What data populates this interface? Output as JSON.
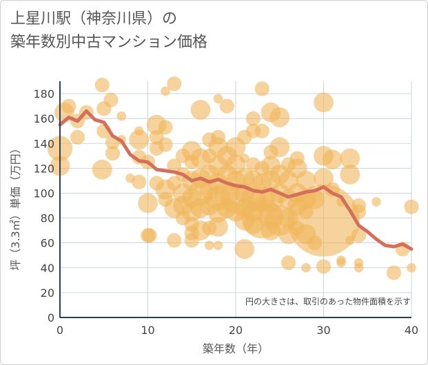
{
  "title_line1": "上星川駅（神奈川県）の",
  "title_line2": "築年数別中古マンション価格",
  "chart_data": {
    "type": "scatter",
    "title": "上星川駅（神奈川県）の 築年数別中古マンション価格",
    "xlabel": "築年数（年）",
    "ylabel": "坪（3.3㎡）単価（万円）",
    "xlim": [
      0,
      40
    ],
    "ylim": [
      0,
      190
    ],
    "xticks": [
      0,
      10,
      20,
      30,
      40
    ],
    "yticks": [
      0,
      20,
      40,
      60,
      80,
      100,
      120,
      140,
      160,
      180
    ],
    "grid": true,
    "note": "円の大きさは、取引のあった物件面積を示す",
    "bubble_color": "#f0b55a",
    "line_color": "#d4705a",
    "trend_line": {
      "x": [
        0,
        1,
        2,
        3,
        4,
        5,
        6,
        7,
        8,
        9,
        10,
        11,
        12,
        13,
        14,
        15,
        16,
        17,
        18,
        19,
        20,
        21,
        22,
        23,
        24,
        25,
        26,
        27,
        28,
        29,
        30,
        31,
        32,
        33,
        34,
        35,
        36,
        37,
        38,
        39,
        40
      ],
      "y": [
        155,
        161,
        158,
        166,
        159,
        157,
        146,
        142,
        131,
        126,
        125,
        119,
        118,
        117,
        115,
        110,
        112,
        109,
        111,
        108,
        106,
        105,
        102,
        101,
        103,
        100,
        97,
        99,
        101,
        102,
        105,
        100,
        97,
        86,
        74,
        69,
        63,
        58,
        57,
        59,
        55
      ]
    },
    "bubbles": [
      {
        "x": 0,
        "y": 136,
        "s": 4
      },
      {
        "x": 0,
        "y": 122,
        "s": 3
      },
      {
        "x": 0.5,
        "y": 165,
        "s": 3
      },
      {
        "x": 1,
        "y": 170,
        "s": 2
      },
      {
        "x": 2,
        "y": 158,
        "s": 2
      },
      {
        "x": 2,
        "y": 145,
        "s": 2
      },
      {
        "x": 3,
        "y": 165,
        "s": 2
      },
      {
        "x": 4.8,
        "y": 187,
        "s": 2
      },
      {
        "x": 5,
        "y": 168,
        "s": 2
      },
      {
        "x": 5,
        "y": 150,
        "s": 2
      },
      {
        "x": 4.8,
        "y": 119,
        "s": 3
      },
      {
        "x": 5.8,
        "y": 175,
        "s": 2
      },
      {
        "x": 6,
        "y": 141,
        "s": 2
      },
      {
        "x": 6,
        "y": 132,
        "s": 2
      },
      {
        "x": 7,
        "y": 162,
        "s": 1
      },
      {
        "x": 7,
        "y": 143,
        "s": 1
      },
      {
        "x": 8,
        "y": 112,
        "s": 1
      },
      {
        "x": 9,
        "y": 150,
        "s": 1
      },
      {
        "x": 9,
        "y": 143,
        "s": 3
      },
      {
        "x": 9,
        "y": 129,
        "s": 2
      },
      {
        "x": 9,
        "y": 109,
        "s": 2
      },
      {
        "x": 10,
        "y": 125,
        "s": 2
      },
      {
        "x": 10,
        "y": 92,
        "s": 3
      },
      {
        "x": 10,
        "y": 66,
        "s": 2
      },
      {
        "x": 10.2,
        "y": 66,
        "s": 2
      },
      {
        "x": 11,
        "y": 155,
        "s": 3
      },
      {
        "x": 11,
        "y": 145,
        "s": 2
      },
      {
        "x": 11,
        "y": 136,
        "s": 2
      },
      {
        "x": 11,
        "y": 108,
        "s": 2
      },
      {
        "x": 12,
        "y": 182,
        "s": 1
      },
      {
        "x": 12,
        "y": 153,
        "s": 2
      },
      {
        "x": 12,
        "y": 139,
        "s": 2
      },
      {
        "x": 12,
        "y": 103,
        "s": 3
      },
      {
        "x": 12,
        "y": 95,
        "s": 2
      },
      {
        "x": 13,
        "y": 188,
        "s": 2
      },
      {
        "x": 13,
        "y": 122,
        "s": 2
      },
      {
        "x": 13,
        "y": 108,
        "s": 2
      },
      {
        "x": 13,
        "y": 88,
        "s": 3
      },
      {
        "x": 13,
        "y": 62,
        "s": 2
      },
      {
        "x": 14,
        "y": 130,
        "s": 2
      },
      {
        "x": 14,
        "y": 115,
        "s": 2
      },
      {
        "x": 14,
        "y": 100,
        "s": 3
      },
      {
        "x": 14,
        "y": 90,
        "s": 3
      },
      {
        "x": 14,
        "y": 80,
        "s": 2
      },
      {
        "x": 15,
        "y": 134,
        "s": 3
      },
      {
        "x": 15,
        "y": 125,
        "s": 2
      },
      {
        "x": 15,
        "y": 110,
        "s": 3
      },
      {
        "x": 15,
        "y": 96,
        "s": 3
      },
      {
        "x": 15,
        "y": 85,
        "s": 3
      },
      {
        "x": 15,
        "y": 75,
        "s": 2
      },
      {
        "x": 15,
        "y": 68,
        "s": 2
      },
      {
        "x": 15,
        "y": 62,
        "s": 2
      },
      {
        "x": 16,
        "y": 167,
        "s": 3
      },
      {
        "x": 16,
        "y": 128,
        "s": 3
      },
      {
        "x": 16,
        "y": 112,
        "s": 3
      },
      {
        "x": 16,
        "y": 100,
        "s": 4
      },
      {
        "x": 16,
        "y": 88,
        "s": 3
      },
      {
        "x": 16,
        "y": 70,
        "s": 3
      },
      {
        "x": 17,
        "y": 143,
        "s": 2
      },
      {
        "x": 17,
        "y": 130,
        "s": 2
      },
      {
        "x": 17,
        "y": 115,
        "s": 3
      },
      {
        "x": 17,
        "y": 103,
        "s": 3
      },
      {
        "x": 17,
        "y": 90,
        "s": 3
      },
      {
        "x": 17,
        "y": 72,
        "s": 2
      },
      {
        "x": 17,
        "y": 58,
        "s": 1
      },
      {
        "x": 18,
        "y": 176,
        "s": 1
      },
      {
        "x": 18,
        "y": 145,
        "s": 2
      },
      {
        "x": 18,
        "y": 137,
        "s": 3
      },
      {
        "x": 18,
        "y": 122,
        "s": 3
      },
      {
        "x": 18,
        "y": 108,
        "s": 3
      },
      {
        "x": 18,
        "y": 96,
        "s": 4
      },
      {
        "x": 18,
        "y": 84,
        "s": 3
      },
      {
        "x": 18,
        "y": 73,
        "s": 3
      },
      {
        "x": 18,
        "y": 58,
        "s": 1
      },
      {
        "x": 19,
        "y": 170,
        "s": 2
      },
      {
        "x": 19,
        "y": 130,
        "s": 3
      },
      {
        "x": 19,
        "y": 115,
        "s": 3
      },
      {
        "x": 19,
        "y": 100,
        "s": 4
      },
      {
        "x": 19,
        "y": 88,
        "s": 3
      },
      {
        "x": 20,
        "y": 137,
        "s": 3
      },
      {
        "x": 20,
        "y": 123,
        "s": 3
      },
      {
        "x": 20,
        "y": 110,
        "s": 3
      },
      {
        "x": 20,
        "y": 96,
        "s": 5
      },
      {
        "x": 20,
        "y": 85,
        "s": 3
      },
      {
        "x": 21,
        "y": 145,
        "s": 2
      },
      {
        "x": 21,
        "y": 128,
        "s": 1
      },
      {
        "x": 21,
        "y": 112,
        "s": 3
      },
      {
        "x": 21,
        "y": 100,
        "s": 3
      },
      {
        "x": 21,
        "y": 88,
        "s": 3
      },
      {
        "x": 21,
        "y": 78,
        "s": 3
      },
      {
        "x": 21,
        "y": 55,
        "s": 3
      },
      {
        "x": 22,
        "y": 160,
        "s": 2
      },
      {
        "x": 22,
        "y": 150,
        "s": 2
      },
      {
        "x": 22,
        "y": 123,
        "s": 2
      },
      {
        "x": 22,
        "y": 110,
        "s": 3
      },
      {
        "x": 22,
        "y": 95,
        "s": 4
      },
      {
        "x": 22,
        "y": 85,
        "s": 3
      },
      {
        "x": 22,
        "y": 75,
        "s": 3
      },
      {
        "x": 23,
        "y": 184,
        "s": 2
      },
      {
        "x": 23,
        "y": 150,
        "s": 2
      },
      {
        "x": 23,
        "y": 120,
        "s": 2
      },
      {
        "x": 23,
        "y": 108,
        "s": 3
      },
      {
        "x": 23,
        "y": 95,
        "s": 4
      },
      {
        "x": 23,
        "y": 80,
        "s": 7
      },
      {
        "x": 24,
        "y": 165,
        "s": 3
      },
      {
        "x": 24,
        "y": 133,
        "s": 2
      },
      {
        "x": 24,
        "y": 122,
        "s": 3
      },
      {
        "x": 24,
        "y": 110,
        "s": 3
      },
      {
        "x": 24,
        "y": 95,
        "s": 4
      },
      {
        "x": 24,
        "y": 82,
        "s": 4
      },
      {
        "x": 24,
        "y": 70,
        "s": 3
      },
      {
        "x": 25,
        "y": 161,
        "s": 3
      },
      {
        "x": 25,
        "y": 137,
        "s": 3
      },
      {
        "x": 25,
        "y": 115,
        "s": 3
      },
      {
        "x": 25,
        "y": 100,
        "s": 3
      },
      {
        "x": 25,
        "y": 78,
        "s": 5
      },
      {
        "x": 26,
        "y": 123,
        "s": 2
      },
      {
        "x": 26,
        "y": 110,
        "s": 3
      },
      {
        "x": 26,
        "y": 95,
        "s": 3
      },
      {
        "x": 26,
        "y": 80,
        "s": 3
      },
      {
        "x": 26,
        "y": 67,
        "s": 3
      },
      {
        "x": 26,
        "y": 44,
        "s": 2
      },
      {
        "x": 27,
        "y": 128,
        "s": 2
      },
      {
        "x": 27,
        "y": 120,
        "s": 3
      },
      {
        "x": 27,
        "y": 100,
        "s": 3
      },
      {
        "x": 27,
        "y": 90,
        "s": 3
      },
      {
        "x": 27,
        "y": 72,
        "s": 2
      },
      {
        "x": 28,
        "y": 110,
        "s": 3
      },
      {
        "x": 28,
        "y": 95,
        "s": 3
      },
      {
        "x": 28,
        "y": 85,
        "s": 2
      },
      {
        "x": 28,
        "y": 67,
        "s": 3
      },
      {
        "x": 28,
        "y": 40,
        "s": 1
      },
      {
        "x": 29,
        "y": 95,
        "s": 3
      },
      {
        "x": 29,
        "y": 60,
        "s": 2
      },
      {
        "x": 30,
        "y": 173,
        "s": 3
      },
      {
        "x": 30,
        "y": 130,
        "s": 3
      },
      {
        "x": 30,
        "y": 112,
        "s": 3
      },
      {
        "x": 30,
        "y": 78,
        "s": 13
      },
      {
        "x": 30,
        "y": 41,
        "s": 2
      },
      {
        "x": 31,
        "y": 127,
        "s": 3
      },
      {
        "x": 31,
        "y": 103,
        "s": 2
      },
      {
        "x": 32,
        "y": 93,
        "s": 1
      },
      {
        "x": 32,
        "y": 46,
        "s": 1
      },
      {
        "x": 32,
        "y": 44,
        "s": 1
      },
      {
        "x": 33,
        "y": 128,
        "s": 3
      },
      {
        "x": 33,
        "y": 115,
        "s": 3
      },
      {
        "x": 33,
        "y": 62,
        "s": 1
      },
      {
        "x": 34,
        "y": 90,
        "s": 2
      },
      {
        "x": 34,
        "y": 85,
        "s": 2
      },
      {
        "x": 34,
        "y": 66,
        "s": 2
      },
      {
        "x": 34,
        "y": 44,
        "s": 1
      },
      {
        "x": 34,
        "y": 40,
        "s": 1
      },
      {
        "x": 36,
        "y": 93,
        "s": 1
      },
      {
        "x": 38,
        "y": 36,
        "s": 2
      },
      {
        "x": 39,
        "y": 55,
        "s": 2
      },
      {
        "x": 40,
        "y": 89,
        "s": 2
      },
      {
        "x": 40,
        "y": 40,
        "s": 1
      }
    ]
  }
}
